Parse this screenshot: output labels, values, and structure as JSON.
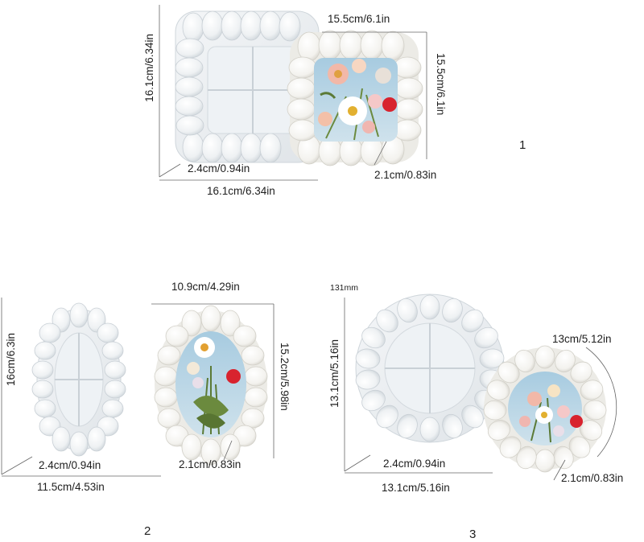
{
  "products": [
    {
      "number": "1",
      "shape": "square",
      "mold_width": "16.1cm/6.34in",
      "mold_height": "16.1cm/6.34in",
      "mold_depth": "2.4cm/0.94in",
      "tray_width": "15.5cm/6.1in",
      "tray_height": "15.5cm/6.1in",
      "tray_depth": "2.1cm/0.83in"
    },
    {
      "number": "2",
      "shape": "oval",
      "mold_width": "11.5cm/4.53in",
      "mold_height": "16cm/6.3in",
      "mold_depth": "2.4cm/0.94in",
      "tray_width": "10.9cm/4.29in",
      "tray_height": "15.2cm/5.98in",
      "tray_depth": "2.1cm/0.83in"
    },
    {
      "number": "3",
      "shape": "round",
      "note": "131mm",
      "mold_width": "13.1cm/5.16in",
      "mold_height": "13.1cm/5.16in",
      "mold_depth": "2.4cm/0.94in",
      "tray_diameter": "13cm/5.12in",
      "tray_depth": "2.1cm/0.83in"
    }
  ],
  "colors": {
    "silicone": "#e9edf0",
    "resin_white": "#f5f4f1",
    "flower_red": "#d8232e",
    "flower_pink": "#f0b6b0",
    "leaf_green": "#5b7a36",
    "sky_blue": "#9cc3d8"
  }
}
